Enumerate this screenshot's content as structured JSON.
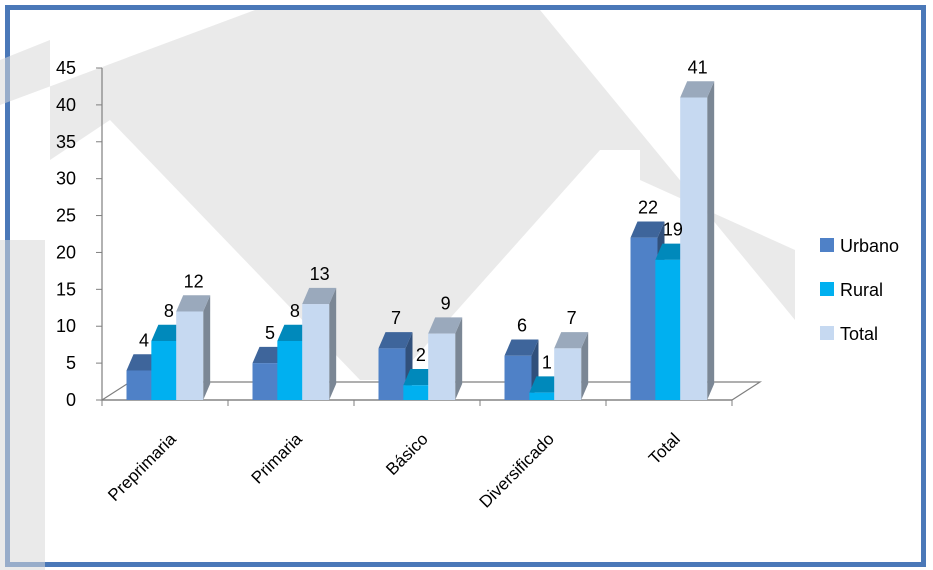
{
  "chart_data": {
    "type": "bar",
    "title": "",
    "xlabel": "",
    "ylabel": "",
    "categories": [
      "Preprimaria",
      "Primaria",
      "Básico",
      "Diversificado",
      "Total"
    ],
    "series": [
      {
        "name": "Urbano",
        "values": [
          4,
          5,
          7,
          6,
          22
        ],
        "color": "#4f81c7"
      },
      {
        "name": "Rural",
        "values": [
          8,
          8,
          2,
          1,
          19
        ],
        "color": "#00b0f0"
      },
      {
        "name": "Total",
        "values": [
          12,
          13,
          9,
          7,
          41
        ],
        "color": "#c6d9f1"
      }
    ],
    "ylim": [
      0,
      45
    ],
    "yticks": [
      0,
      5,
      10,
      15,
      20,
      25,
      30,
      35,
      40,
      45
    ],
    "grid": false,
    "legend_position": "right",
    "style": "3d-clustered-column"
  },
  "watermark": {
    "text": "N",
    "color": "#d9d9d9"
  }
}
